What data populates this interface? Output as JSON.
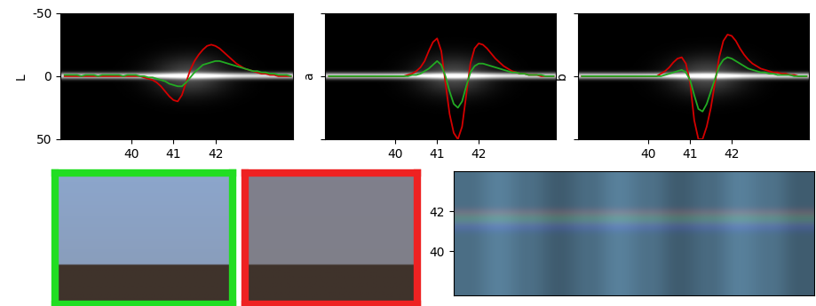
{
  "chart_data": [
    {
      "type": "line",
      "y_label": "L",
      "tick_labels": true,
      "xlim": [
        38.3,
        43.85
      ],
      "xticks": [
        40,
        41,
        42
      ],
      "ylim": [
        50,
        -50
      ],
      "yticks": [
        -50,
        0,
        50
      ],
      "x": [
        38.4,
        38.5,
        38.6,
        38.7,
        38.8,
        38.9,
        39.0,
        39.1,
        39.2,
        39.3,
        39.4,
        39.5,
        39.6,
        39.7,
        39.8,
        39.9,
        40.0,
        40.1,
        40.2,
        40.3,
        40.4,
        40.5,
        40.6,
        40.7,
        40.8,
        40.9,
        41.0,
        41.1,
        41.2,
        41.3,
        41.4,
        41.5,
        41.6,
        41.7,
        41.8,
        41.9,
        42.0,
        42.1,
        42.2,
        42.3,
        42.4,
        42.5,
        42.6,
        42.7,
        42.8,
        42.9,
        43.0,
        43.1,
        43.2,
        43.3,
        43.4,
        43.5,
        43.6,
        43.7,
        43.8
      ],
      "series": [
        {
          "color": "#d40000",
          "values": [
            0,
            0,
            0,
            0,
            0,
            0,
            0,
            0,
            0,
            0,
            0,
            0,
            0,
            0,
            0,
            0,
            0,
            0,
            0,
            1,
            2,
            3,
            5,
            8,
            12,
            16,
            19,
            20,
            15,
            5,
            -5,
            -12,
            -17,
            -21,
            -24,
            -25,
            -24,
            -22,
            -19,
            -16,
            -13,
            -10,
            -8,
            -6,
            -5,
            -4,
            -3,
            -2,
            -2,
            -1,
            -1,
            0,
            0,
            0,
            0
          ]
        },
        {
          "color": "#22aa22",
          "values": [
            -1,
            -1,
            -1,
            -1,
            0,
            -1,
            -1,
            -1,
            0,
            -1,
            -1,
            -1,
            -1,
            -1,
            0,
            -1,
            -1,
            -1,
            0,
            0,
            1,
            1,
            2,
            3,
            4,
            6,
            7,
            8,
            8,
            5,
            1,
            -3,
            -6,
            -9,
            -10,
            -11,
            -12,
            -12,
            -11,
            -10,
            -9,
            -8,
            -7,
            -6,
            -5,
            -4,
            -4,
            -3,
            -3,
            -2,
            -2,
            -1,
            -1,
            -1,
            0
          ]
        }
      ]
    },
    {
      "type": "line",
      "y_label": "a",
      "tick_labels": "x",
      "xlim": [
        38.3,
        43.85
      ],
      "xticks": [
        40,
        41,
        42
      ],
      "ylim": [
        50,
        -50
      ],
      "yticks": [
        -50,
        0,
        50
      ],
      "x": [
        38.4,
        38.5,
        38.6,
        38.7,
        38.8,
        38.9,
        39.0,
        39.1,
        39.2,
        39.3,
        39.4,
        39.5,
        39.6,
        39.7,
        39.8,
        39.9,
        40.0,
        40.1,
        40.2,
        40.3,
        40.4,
        40.5,
        40.6,
        40.7,
        40.8,
        40.9,
        41.0,
        41.1,
        41.2,
        41.3,
        41.4,
        41.5,
        41.6,
        41.7,
        41.8,
        41.9,
        42.0,
        42.1,
        42.2,
        42.3,
        42.4,
        42.5,
        42.6,
        42.7,
        42.8,
        42.9,
        43.0,
        43.1,
        43.2,
        43.3,
        43.4,
        43.5,
        43.6,
        43.7,
        43.8
      ],
      "series": [
        {
          "color": "#d40000",
          "values": [
            0,
            0,
            0,
            0,
            0,
            0,
            0,
            0,
            0,
            0,
            0,
            0,
            0,
            0,
            0,
            0,
            0,
            0,
            0,
            -1,
            -2,
            -4,
            -7,
            -12,
            -20,
            -27,
            -30,
            -20,
            5,
            30,
            45,
            50,
            40,
            15,
            -10,
            -22,
            -26,
            -25,
            -22,
            -18,
            -14,
            -11,
            -8,
            -6,
            -4,
            -3,
            -2,
            -2,
            -1,
            -1,
            -1,
            0,
            0,
            0,
            0
          ]
        },
        {
          "color": "#22aa22",
          "values": [
            0,
            0,
            0,
            0,
            0,
            0,
            0,
            0,
            0,
            0,
            0,
            0,
            0,
            0,
            0,
            0,
            0,
            0,
            0,
            0,
            -1,
            -1,
            -2,
            -4,
            -6,
            -9,
            -12,
            -9,
            0,
            12,
            22,
            25,
            20,
            8,
            -3,
            -8,
            -10,
            -10,
            -9,
            -8,
            -7,
            -6,
            -5,
            -4,
            -3,
            -3,
            -2,
            -2,
            -1,
            -1,
            -1,
            -1,
            0,
            0,
            0
          ]
        }
      ]
    },
    {
      "type": "line",
      "y_label": "b",
      "tick_labels": "x",
      "xlim": [
        38.3,
        43.85
      ],
      "xticks": [
        40,
        41,
        42
      ],
      "ylim": [
        50,
        -50
      ],
      "yticks": [
        -50,
        0,
        50
      ],
      "x": [
        38.4,
        38.5,
        38.6,
        38.7,
        38.8,
        38.9,
        39.0,
        39.1,
        39.2,
        39.3,
        39.4,
        39.5,
        39.6,
        39.7,
        39.8,
        39.9,
        40.0,
        40.1,
        40.2,
        40.3,
        40.4,
        40.5,
        40.6,
        40.7,
        40.8,
        40.9,
        41.0,
        41.1,
        41.2,
        41.3,
        41.4,
        41.5,
        41.6,
        41.7,
        41.8,
        41.9,
        42.0,
        42.1,
        42.2,
        42.3,
        42.4,
        42.5,
        42.6,
        42.7,
        42.8,
        42.9,
        43.0,
        43.1,
        43.2,
        43.3,
        43.4,
        43.5,
        43.6,
        43.7,
        43.8
      ],
      "series": [
        {
          "color": "#d40000",
          "values": [
            0,
            0,
            0,
            0,
            0,
            0,
            0,
            0,
            0,
            0,
            0,
            0,
            0,
            0,
            0,
            0,
            0,
            0,
            0,
            -2,
            -4,
            -7,
            -11,
            -14,
            -15,
            -10,
            5,
            35,
            50,
            50,
            40,
            25,
            5,
            -15,
            -28,
            -33,
            -32,
            -28,
            -22,
            -17,
            -13,
            -10,
            -8,
            -6,
            -5,
            -4,
            -3,
            -3,
            -2,
            -2,
            -1,
            -1,
            0,
            0,
            0
          ]
        },
        {
          "color": "#22aa22",
          "values": [
            0,
            0,
            0,
            0,
            0,
            0,
            0,
            0,
            0,
            0,
            0,
            0,
            0,
            0,
            0,
            0,
            0,
            0,
            0,
            0,
            -1,
            -2,
            -3,
            -4,
            -5,
            -3,
            3,
            15,
            26,
            28,
            22,
            12,
            2,
            -8,
            -13,
            -15,
            -14,
            -12,
            -10,
            -8,
            -6,
            -5,
            -4,
            -3,
            -3,
            -2,
            -2,
            -1,
            -1,
            -1,
            -1,
            0,
            0,
            0,
            0
          ]
        }
      ]
    },
    {
      "type": "image",
      "tick_labels": "y",
      "ylim": [
        37.8,
        44.0
      ],
      "yticks": [
        40,
        42
      ]
    }
  ]
}
